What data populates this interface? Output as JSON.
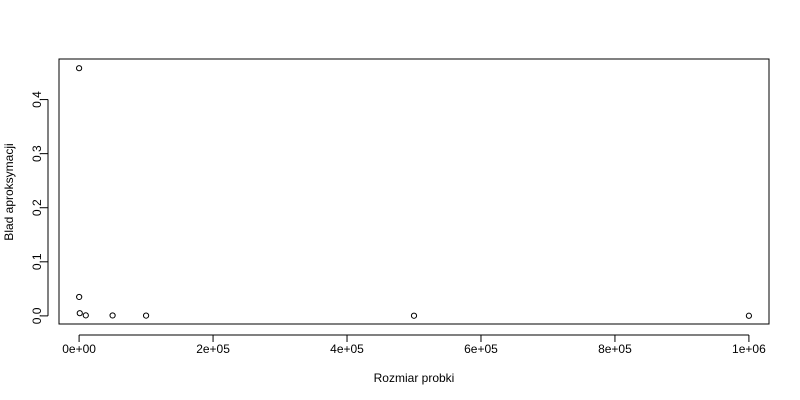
{
  "chart_data": {
    "type": "scatter",
    "title": "",
    "xlabel": "Rozmiar probki",
    "ylabel": "Blad aproksymacji",
    "xlim": [
      -30000,
      1030000
    ],
    "ylim": [
      -0.015,
      0.475
    ],
    "x_ticks": [
      {
        "value": 0,
        "label": "0e+00"
      },
      {
        "value": 200000,
        "label": "2e+05"
      },
      {
        "value": 400000,
        "label": "4e+05"
      },
      {
        "value": 600000,
        "label": "6e+05"
      },
      {
        "value": 800000,
        "label": "8e+05"
      },
      {
        "value": 1000000,
        "label": "1e+06"
      }
    ],
    "y_ticks": [
      {
        "value": 0.0,
        "label": "0.0"
      },
      {
        "value": 0.1,
        "label": "0.1"
      },
      {
        "value": 0.2,
        "label": "0.2"
      },
      {
        "value": 0.3,
        "label": "0.3"
      },
      {
        "value": 0.4,
        "label": "0.4"
      }
    ],
    "grid": false,
    "legend": "none",
    "series": [
      {
        "x": [
          10,
          100,
          1000,
          10000,
          50000,
          100000,
          500000,
          1000000
        ],
        "y": [
          0.458,
          0.035,
          0.005,
          0.001,
          0.0008,
          0.0005,
          0.0003,
          0.0002
        ]
      }
    ],
    "marker_color": "#000000"
  }
}
